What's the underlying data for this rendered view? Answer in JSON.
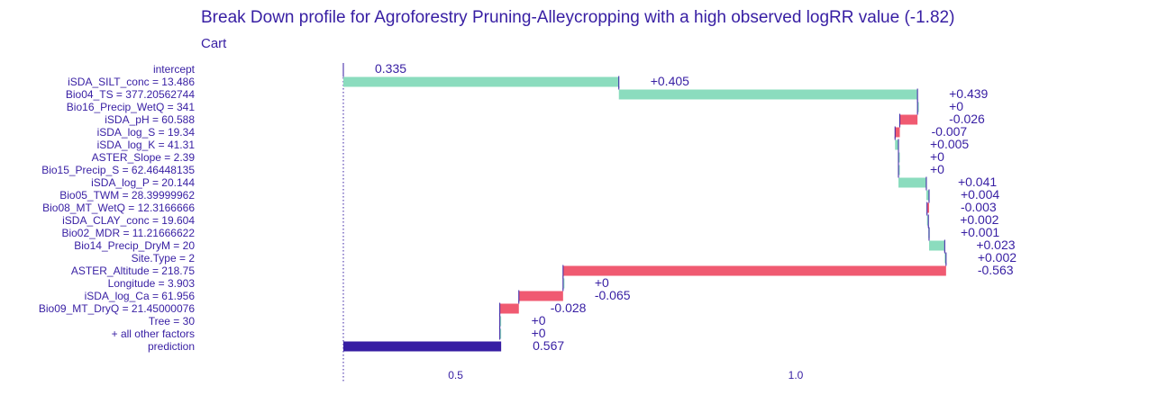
{
  "chart_data": {
    "type": "bar",
    "title": "Break Down profile for Agroforestry Pruning-Alleycropping with a high observed logRR value (-1.82)",
    "subtitle": "Cart",
    "xlim": [
      0.335,
      1.2795
    ],
    "x_ticks": [
      "0.5",
      "1.0"
    ],
    "x_tick_values": [
      0.5,
      1.0
    ],
    "grid": false,
    "colors": {
      "positive": "#8bdcbe",
      "negative": "#f05a71",
      "prediction": "#371ea3",
      "text": "#371ea3",
      "baseline": "#371ea3"
    },
    "rows": [
      {
        "variable": "intercept",
        "contribution": 0.335,
        "start": 0.335,
        "end": 0.335,
        "label": "0.335",
        "kind": "intercept"
      },
      {
        "variable": "iSDA_SILT_conc = 13.486",
        "contribution": 0.405,
        "start": 0.335,
        "end": 0.74,
        "label": "+0.405",
        "kind": "positive"
      },
      {
        "variable": "Bio04_TS = 377.20562744",
        "contribution": 0.439,
        "start": 0.74,
        "end": 1.179,
        "label": "+0.439",
        "kind": "positive"
      },
      {
        "variable": "Bio16_Precip_WetQ = 341",
        "contribution": 0.0,
        "start": 1.179,
        "end": 1.179,
        "label": "+0",
        "kind": "positive"
      },
      {
        "variable": "iSDA_pH = 60.588",
        "contribution": -0.026,
        "start": 1.179,
        "end": 1.153,
        "label": "-0.026",
        "kind": "negative"
      },
      {
        "variable": "iSDA_log_S = 19.34",
        "contribution": -0.007,
        "start": 1.153,
        "end": 1.146,
        "label": "-0.007",
        "kind": "negative"
      },
      {
        "variable": "iSDA_log_K = 41.31",
        "contribution": 0.005,
        "start": 1.146,
        "end": 1.151,
        "label": "+0.005",
        "kind": "positive"
      },
      {
        "variable": "ASTER_Slope = 2.39",
        "contribution": 0.0,
        "start": 1.151,
        "end": 1.151,
        "label": "+0",
        "kind": "positive"
      },
      {
        "variable": "Bio15_Precip_S = 62.46448135",
        "contribution": 0.0,
        "start": 1.151,
        "end": 1.151,
        "label": "+0",
        "kind": "positive"
      },
      {
        "variable": "iSDA_log_P = 20.144",
        "contribution": 0.041,
        "start": 1.151,
        "end": 1.192,
        "label": "+0.041",
        "kind": "positive"
      },
      {
        "variable": "Bio05_TWM = 28.39999962",
        "contribution": 0.004,
        "start": 1.192,
        "end": 1.196,
        "label": "+0.004",
        "kind": "positive"
      },
      {
        "variable": "Bio08_MT_WetQ = 12.3166666",
        "contribution": -0.003,
        "start": 1.196,
        "end": 1.193,
        "label": "-0.003",
        "kind": "negative"
      },
      {
        "variable": "iSDA_CLAY_conc = 19.604",
        "contribution": 0.002,
        "start": 1.193,
        "end": 1.195,
        "label": "+0.002",
        "kind": "positive"
      },
      {
        "variable": "Bio02_MDR = 11.21666622",
        "contribution": 0.001,
        "start": 1.195,
        "end": 1.196,
        "label": "+0.001",
        "kind": "positive"
      },
      {
        "variable": "Bio14_Precip_DryM = 20",
        "contribution": 0.023,
        "start": 1.196,
        "end": 1.219,
        "label": "+0.023",
        "kind": "positive"
      },
      {
        "variable": "Site.Type = 2",
        "contribution": 0.002,
        "start": 1.219,
        "end": 1.221,
        "label": "+0.002",
        "kind": "positive"
      },
      {
        "variable": "ASTER_Altitude = 218.75",
        "contribution": -0.563,
        "start": 1.221,
        "end": 0.658,
        "label": "-0.563",
        "kind": "negative"
      },
      {
        "variable": "Longitude = 3.903",
        "contribution": 0.0,
        "start": 0.658,
        "end": 0.658,
        "label": "+0",
        "kind": "positive"
      },
      {
        "variable": "iSDA_log_Ca = 61.956",
        "contribution": -0.065,
        "start": 0.658,
        "end": 0.593,
        "label": "-0.065",
        "kind": "negative"
      },
      {
        "variable": "Bio09_MT_DryQ = 21.45000076",
        "contribution": -0.028,
        "start": 0.593,
        "end": 0.565,
        "label": "-0.028",
        "kind": "negative"
      },
      {
        "variable": "Tree = 30",
        "contribution": 0.0,
        "start": 0.565,
        "end": 0.565,
        "label": "+0",
        "kind": "positive"
      },
      {
        "variable": "+ all other factors",
        "contribution": 0.0,
        "start": 0.565,
        "end": 0.565,
        "label": "+0",
        "kind": "positive"
      },
      {
        "variable": "prediction",
        "contribution": 0.567,
        "start": 0.335,
        "end": 0.567,
        "label": "0.567",
        "kind": "prediction"
      }
    ]
  }
}
